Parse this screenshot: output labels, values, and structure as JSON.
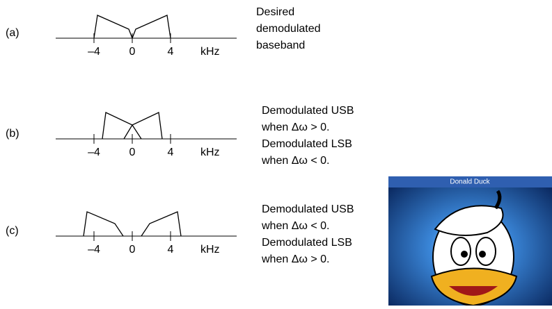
{
  "panels": [
    {
      "label": "(a)",
      "ticks": [
        "–4",
        "0",
        "4"
      ],
      "unit": "kHz",
      "caption": [
        "Desired",
        "demodulated",
        "baseband"
      ]
    },
    {
      "label": "(b)",
      "ticks": [
        "–4",
        "0",
        "4"
      ],
      "unit": "kHz",
      "caption": [
        "Demodulated USB",
        "when Δω > 0.",
        "Demodulated LSB",
        "when Δω < 0."
      ]
    },
    {
      "label": "(c)",
      "ticks": [
        "–4",
        "0",
        "4"
      ],
      "unit": "kHz",
      "caption": [
        "Demodulated USB",
        "when Δω < 0.",
        "Demodulated LSB",
        "when Δω > 0."
      ]
    }
  ],
  "image": {
    "title": "Donald Duck"
  }
}
